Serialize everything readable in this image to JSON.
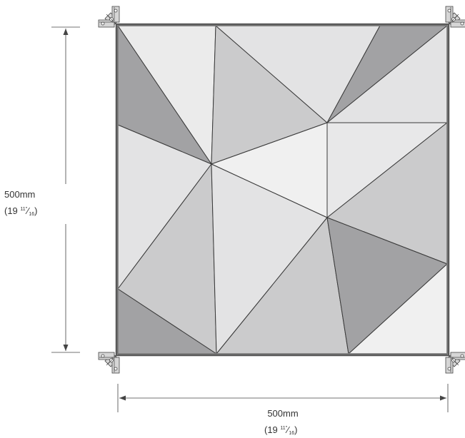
{
  "dimensions": {
    "height": {
      "value": "500mm",
      "imperial_prefix": "(19 ",
      "fraction_num": "11",
      "fraction_den": "16",
      "fraction_mark": "″",
      "imperial_suffix": ")"
    },
    "width": {
      "value": "500mm",
      "imperial_prefix": "(19 ",
      "fraction_num": "11",
      "fraction_den": "16",
      "fraction_mark": "″",
      "imperial_suffix": ")"
    }
  },
  "colors": {
    "edge": "#3a3a3a",
    "dark": "#a2a2a4",
    "mid": "#cbcbcc",
    "light": "#e3e3e4",
    "lightest": "#f0f0f0",
    "dimension_line": "#444444"
  },
  "icons": [
    "corner-connector-icon"
  ]
}
